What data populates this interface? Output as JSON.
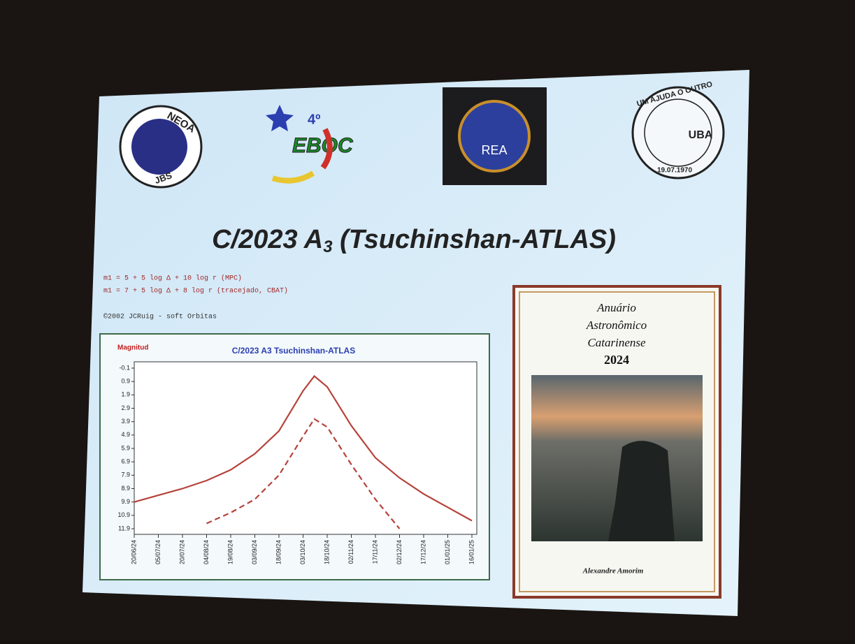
{
  "slide": {
    "title_prefix": "C/2023 A",
    "title_sub": "3",
    "title_suffix": " (Tsuchinshan-ATLAS)",
    "formulas": [
      "m1 = 5 + 5 log Δ + 10 log r (MPC)",
      "m1 = 7 + 5 log Δ + 8 log r (tracejado, CBAT)"
    ],
    "credit": "©2002 JCRuig - soft Orbitas",
    "logos": {
      "neoa_top": "NEOA",
      "neoa_bottom": "JBS",
      "eboc_num": "4º",
      "eboc": "EBOC",
      "rea": "REA",
      "uba_ring": "UM AJUDA O OUTRO",
      "uba": "UBA",
      "uba_date": "19.07.1970"
    },
    "book": {
      "lines": [
        "Anuário",
        "Astronômico",
        "Catarinense"
      ],
      "year": "2024",
      "author": "Alexandre Amorim"
    }
  },
  "chart_data": {
    "type": "line",
    "title": "C/2023 A3 Tsuchinshan-ATLAS",
    "y_label": "Magnitud",
    "x": [
      "20/06/24",
      "05/07/24",
      "20/07/24",
      "04/08/24",
      "19/08/24",
      "03/09/24",
      "18/09/24",
      "03/10/24",
      "10/10/24",
      "18/10/24",
      "02/11/24",
      "17/11/24",
      "02/12/24",
      "17/12/24",
      "01/01/25",
      "16/01/25"
    ],
    "series": [
      {
        "color": "#b5423a",
        "dash": false,
        "values": [
          9.9,
          9.4,
          8.9,
          8.3,
          7.5,
          6.3,
          4.6,
          1.6,
          0.5,
          1.3,
          4.2,
          6.6,
          8.1,
          9.3,
          10.3,
          11.3
        ]
      },
      {
        "color": "#b5423a",
        "dash": true,
        "values": [
          null,
          null,
          null,
          11.5,
          10.7,
          9.7,
          7.9,
          5.0,
          3.7,
          4.3,
          7.1,
          9.7,
          11.9,
          null,
          null,
          null
        ]
      }
    ],
    "xlim": [
      "20/06/24",
      "16/01/25"
    ],
    "xticks": [
      "20/06/24",
      "05/07/24",
      "20/07/24",
      "04/08/24",
      "19/08/24",
      "03/09/24",
      "18/09/24",
      "03/10/24",
      "18/10/24",
      "02/11/24",
      "17/11/24",
      "02/12/24",
      "17/12/24",
      "01/01/25",
      "16/01/25"
    ],
    "ylim": [
      11.9,
      -0.1
    ],
    "yticks": [
      -0.1,
      0.9,
      1.9,
      2.9,
      3.9,
      4.9,
      5.9,
      6.9,
      7.9,
      8.9,
      9.9,
      10.9,
      11.9
    ]
  }
}
